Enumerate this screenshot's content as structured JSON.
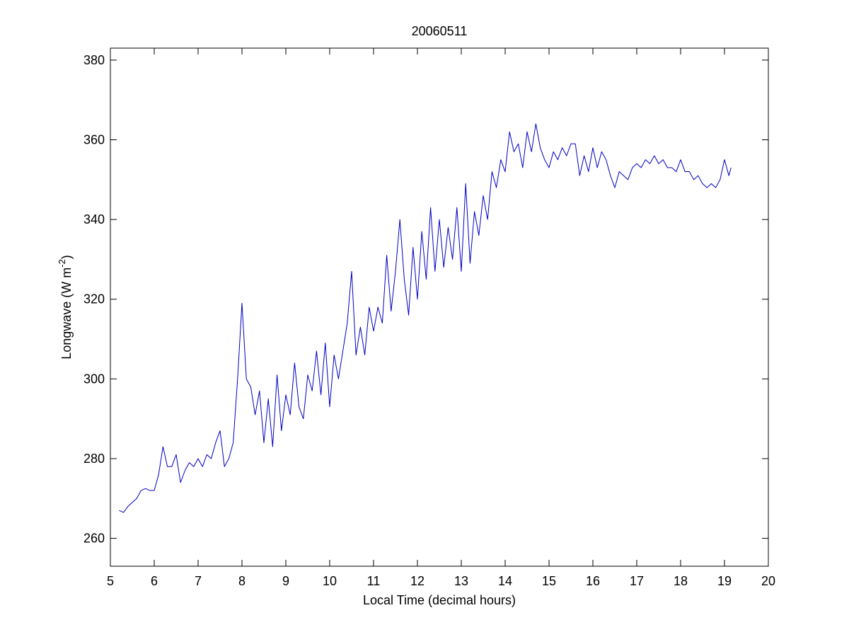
{
  "chart_data": {
    "type": "line",
    "title": "20060511",
    "xlabel": "Local Time (decimal hours)",
    "ylabel_parts": [
      "Longwave (W m",
      "-2",
      ")"
    ],
    "x": [
      5.2,
      5.3,
      5.4,
      5.5,
      5.6,
      5.7,
      5.8,
      5.9,
      6.0,
      6.1,
      6.2,
      6.3,
      6.4,
      6.5,
      6.6,
      6.7,
      6.8,
      6.9,
      7.0,
      7.1,
      7.2,
      7.3,
      7.4,
      7.5,
      7.6,
      7.7,
      7.8,
      7.9,
      8.0,
      8.1,
      8.2,
      8.3,
      8.4,
      8.5,
      8.6,
      8.7,
      8.8,
      8.9,
      9.0,
      9.1,
      9.2,
      9.3,
      9.4,
      9.5,
      9.6,
      9.7,
      9.8,
      9.9,
      10.0,
      10.1,
      10.2,
      10.3,
      10.4,
      10.5,
      10.6,
      10.7,
      10.8,
      10.9,
      11.0,
      11.1,
      11.2,
      11.3,
      11.4,
      11.5,
      11.6,
      11.7,
      11.8,
      11.9,
      12.0,
      12.1,
      12.2,
      12.3,
      12.4,
      12.5,
      12.6,
      12.7,
      12.8,
      12.9,
      13.0,
      13.1,
      13.2,
      13.3,
      13.4,
      13.5,
      13.6,
      13.7,
      13.8,
      13.9,
      14.0,
      14.1,
      14.2,
      14.3,
      14.4,
      14.5,
      14.6,
      14.7,
      14.8,
      14.9,
      15.0,
      15.1,
      15.2,
      15.3,
      15.4,
      15.5,
      15.6,
      15.7,
      15.8,
      15.9,
      16.0,
      16.1,
      16.2,
      16.3,
      16.4,
      16.5,
      16.6,
      16.7,
      16.8,
      16.9,
      17.0,
      17.1,
      17.2,
      17.3,
      17.4,
      17.5,
      17.6,
      17.7,
      17.8,
      17.9,
      18.0,
      18.1,
      18.2,
      18.3,
      18.4,
      18.5,
      18.6,
      18.7,
      18.8,
      18.9,
      19.0,
      19.1,
      19.15
    ],
    "series": [
      {
        "color": "#0000c0",
        "values": [
          267,
          266.5,
          268,
          269,
          270,
          272,
          272.5,
          272,
          272,
          276,
          283,
          278,
          278,
          281,
          274,
          277,
          279,
          278,
          280,
          278,
          281,
          280,
          284,
          287,
          278,
          280,
          284,
          300,
          319,
          300,
          298,
          291,
          297,
          284,
          295,
          283,
          301,
          287,
          296,
          291,
          304,
          293,
          290,
          301,
          297,
          307,
          296,
          309,
          293,
          306,
          300,
          307,
          314,
          327,
          306,
          313,
          306,
          318,
          312,
          318,
          314,
          331,
          317,
          327,
          340,
          325,
          316,
          333,
          320,
          337,
          325,
          343,
          327,
          340,
          328,
          338,
          330,
          343,
          327,
          349,
          329,
          342,
          336,
          346,
          340,
          352,
          348,
          355,
          352,
          362,
          357,
          359,
          353,
          362,
          357,
          364,
          358,
          355,
          353,
          357,
          355,
          358,
          356,
          359,
          359,
          351,
          356,
          352,
          358,
          353,
          357,
          355,
          351,
          348,
          352,
          351,
          350,
          353,
          354,
          353,
          355,
          354,
          356,
          354,
          355,
          353,
          353,
          352,
          355,
          352,
          352,
          350,
          351,
          349,
          348,
          349,
          348,
          350,
          355,
          351,
          353
        ]
      }
    ],
    "xlim": [
      5,
      20
    ],
    "xticks": [
      5,
      6,
      7,
      8,
      9,
      10,
      11,
      12,
      13,
      14,
      15,
      16,
      17,
      18,
      19,
      20
    ],
    "ylim": [
      253,
      383
    ],
    "yticks": [
      260,
      280,
      300,
      320,
      340,
      360,
      380
    ],
    "grid": false
  }
}
